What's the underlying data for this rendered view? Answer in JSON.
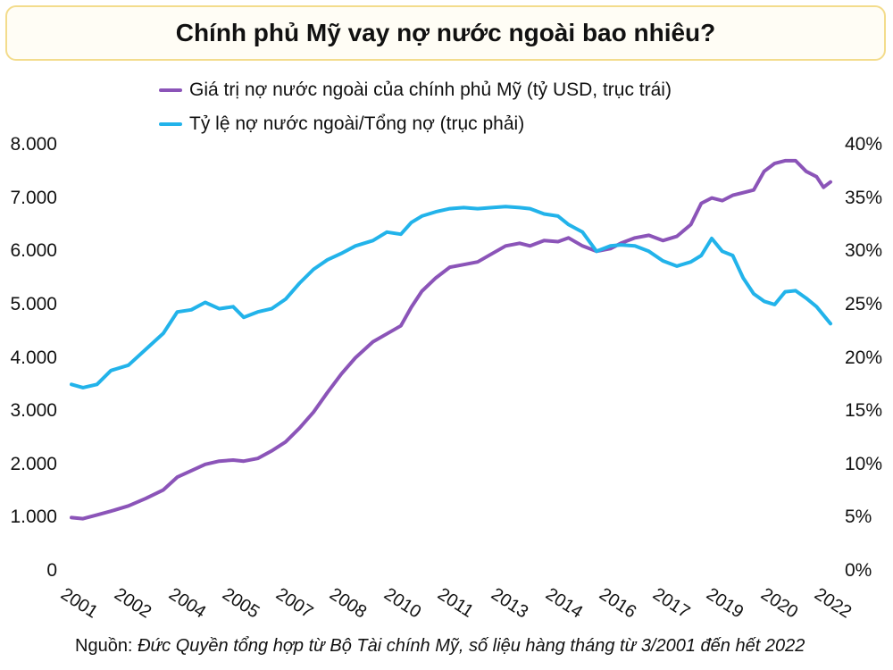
{
  "chart_data": {
    "type": "line",
    "title": "Chính phủ Mỹ vay nợ nước ngoài bao nhiêu?",
    "x_labels": [
      "2001",
      "2002",
      "2004",
      "2005",
      "2007",
      "2008",
      "2010",
      "2011",
      "2013",
      "2014",
      "2016",
      "2017",
      "2019",
      "2020",
      "2022"
    ],
    "y_left_ticks": [
      "0",
      "1.000",
      "2.000",
      "3.000",
      "4.000",
      "5.000",
      "6.000",
      "7.000",
      "8.000"
    ],
    "y_right_ticks": [
      "0%",
      "5%",
      "10%",
      "15%",
      "20%",
      "25%",
      "30%",
      "35%",
      "40%"
    ],
    "ylim_left": [
      0,
      8000
    ],
    "ylim_right": [
      0,
      40
    ],
    "series": [
      {
        "name": "Giá trị nợ nước ngoài của chính phủ Mỹ (tỷ USD, trục trái)",
        "color": "#8b54b8",
        "axis": "left",
        "x": [
          2001.17,
          2001.5,
          2001.9,
          2002.3,
          2002.8,
          2003.3,
          2003.8,
          2004.2,
          2004.6,
          2005.0,
          2005.4,
          2005.8,
          2006.1,
          2006.5,
          2006.9,
          2007.3,
          2007.7,
          2008.1,
          2008.5,
          2008.9,
          2009.3,
          2009.8,
          2010.2,
          2010.6,
          2010.9,
          2011.2,
          2011.6,
          2012.0,
          2012.4,
          2012.8,
          2013.2,
          2013.6,
          2014.0,
          2014.3,
          2014.7,
          2015.1,
          2015.4,
          2015.8,
          2016.2,
          2016.6,
          2016.9,
          2017.3,
          2017.7,
          2018.1,
          2018.5,
          2018.9,
          2019.2,
          2019.5,
          2019.8,
          2020.1,
          2020.4,
          2020.7,
          2021.0,
          2021.3,
          2021.6,
          2021.9,
          2022.2,
          2022.5,
          2022.7,
          2022.9
        ],
        "values": [
          1000,
          980,
          1050,
          1120,
          1220,
          1360,
          1520,
          1760,
          1880,
          2000,
          2060,
          2080,
          2060,
          2110,
          2250,
          2420,
          2680,
          2980,
          3350,
          3700,
          4000,
          4300,
          4450,
          4600,
          4950,
          5250,
          5500,
          5700,
          5750,
          5800,
          5950,
          6100,
          6150,
          6100,
          6200,
          6180,
          6250,
          6100,
          6000,
          6050,
          6150,
          6250,
          6300,
          6200,
          6280,
          6500,
          6900,
          7000,
          6950,
          7050,
          7100,
          7150,
          7500,
          7650,
          7700,
          7700,
          7500,
          7400,
          7200,
          7300
        ]
      },
      {
        "name": "Tỷ lệ nợ nước ngoài/Tổng nợ (trục phải)",
        "color": "#22b3ea",
        "axis": "right",
        "x": [
          2001.17,
          2001.5,
          2001.9,
          2002.3,
          2002.8,
          2003.3,
          2003.8,
          2004.2,
          2004.6,
          2005.0,
          2005.4,
          2005.8,
          2006.1,
          2006.5,
          2006.9,
          2007.3,
          2007.7,
          2008.1,
          2008.5,
          2008.9,
          2009.3,
          2009.8,
          2010.2,
          2010.6,
          2010.9,
          2011.2,
          2011.6,
          2012.0,
          2012.4,
          2012.8,
          2013.2,
          2013.6,
          2014.0,
          2014.3,
          2014.7,
          2015.1,
          2015.4,
          2015.8,
          2016.2,
          2016.6,
          2016.9,
          2017.3,
          2017.7,
          2018.1,
          2018.5,
          2018.9,
          2019.2,
          2019.5,
          2019.8,
          2020.1,
          2020.4,
          2020.7,
          2021.0,
          2021.3,
          2021.6,
          2021.9,
          2022.2,
          2022.5,
          2022.7,
          2022.9
        ],
        "values": [
          17.5,
          17.2,
          17.5,
          18.8,
          19.3,
          20.8,
          22.3,
          24.3,
          24.5,
          25.2,
          24.6,
          24.8,
          23.8,
          24.3,
          24.6,
          25.5,
          27.0,
          28.3,
          29.2,
          29.8,
          30.5,
          31.0,
          31.8,
          31.6,
          32.7,
          33.3,
          33.7,
          34.0,
          34.1,
          34.0,
          34.1,
          34.2,
          34.1,
          34.0,
          33.5,
          33.3,
          32.5,
          31.8,
          30.0,
          30.5,
          30.6,
          30.5,
          30.0,
          29.1,
          28.6,
          29.0,
          29.6,
          31.2,
          30.0,
          29.6,
          27.5,
          26.0,
          25.3,
          25.0,
          26.2,
          26.3,
          25.6,
          24.8,
          24.0,
          23.2
        ]
      }
    ]
  },
  "legend": {
    "purple_label": "Giá trị nợ nước ngoài của chính phủ Mỹ (tỷ USD, trục trái)",
    "blue_label": "Tỷ lệ nợ nước ngoài/Tổng nợ (trục phải)"
  },
  "source": {
    "prefix": "Nguồn:",
    "text": "Đức Quyền tổng hợp từ Bộ Tài chính Mỹ, số liệu hàng tháng từ 3/2001 đến hết 2022"
  }
}
